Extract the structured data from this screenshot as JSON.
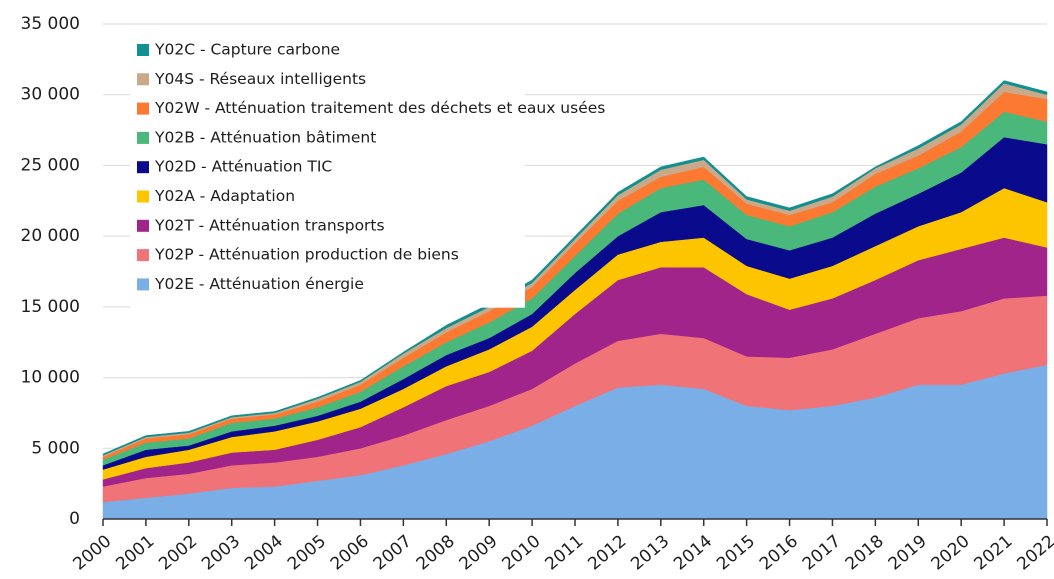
{
  "chart_data": {
    "type": "stacked_area",
    "x": [
      2000,
      2001,
      2002,
      2003,
      2004,
      2005,
      2006,
      2007,
      2008,
      2009,
      2010,
      2011,
      2012,
      2013,
      2014,
      2015,
      2016,
      2017,
      2018,
      2019,
      2020,
      2021,
      2022
    ],
    "xlim": [
      2000,
      2022
    ],
    "xticks": [
      2000,
      2001,
      2002,
      2003,
      2004,
      2005,
      2006,
      2007,
      2008,
      2009,
      2010,
      2011,
      2012,
      2013,
      2014,
      2015,
      2016,
      2017,
      2018,
      2019,
      2020,
      2021,
      2022
    ],
    "ylim": [
      0,
      35000
    ],
    "yticks": [
      0,
      {
        "value": 5000,
        "label": "5 000"
      },
      {
        "value": 10000,
        "label": "10 000"
      },
      {
        "value": 15000,
        "label": "15 000"
      },
      {
        "value": 20000,
        "label": "20 000"
      },
      {
        "value": 25000,
        "label": "25 000"
      },
      {
        "value": 30000,
        "label": "30 000"
      },
      {
        "value": 35000,
        "label": "35 000"
      }
    ],
    "grid": true,
    "legend": "upper left",
    "series": [
      {
        "name": "Y02E - Atténuation énergie",
        "color": "#7aaee6",
        "values": [
          1200,
          1500,
          1800,
          2200,
          2300,
          2700,
          3100,
          3800,
          4600,
          5500,
          6600,
          8000,
          9300,
          9500,
          9200,
          8000,
          7700,
          8000,
          8600,
          9500,
          9500,
          10300,
          10900
        ]
      },
      {
        "name": "Y02P - Atténuation production de biens",
        "color": "#f07378",
        "values": [
          1100,
          1400,
          1400,
          1600,
          1700,
          1700,
          1900,
          2100,
          2400,
          2500,
          2600,
          3000,
          3300,
          3600,
          3600,
          3500,
          3700,
          4000,
          4500,
          4700,
          5200,
          5300,
          4900
        ]
      },
      {
        "name": "Y02T - Atténuation transports",
        "color": "#a0248a",
        "values": [
          500,
          700,
          800,
          900,
          900,
          1200,
          1500,
          2000,
          2400,
          2400,
          2700,
          3500,
          4300,
          4700,
          5000,
          4400,
          3400,
          3600,
          3800,
          4100,
          4400,
          4300,
          3400
        ]
      },
      {
        "name": "Y02A - Adaptation",
        "color": "#fdc500",
        "values": [
          700,
          800,
          900,
          1100,
          1300,
          1300,
          1300,
          1300,
          1400,
          1600,
          1700,
          1700,
          1800,
          1800,
          2100,
          2000,
          2200,
          2300,
          2400,
          2400,
          2600,
          3500,
          3200
        ]
      },
      {
        "name": "Y02D - Atténuation TIC",
        "color": "#0a0a8c",
        "values": [
          300,
          500,
          300,
          400,
          400,
          400,
          500,
          700,
          800,
          800,
          900,
          1200,
          1300,
          2100,
          2300,
          1900,
          2000,
          2000,
          2300,
          2300,
          2800,
          3600,
          4100
        ]
      },
      {
        "name": "Y02B - Atténuation bâtiment",
        "color": "#4ab87a",
        "values": [
          400,
          500,
          500,
          600,
          500,
          600,
          700,
          900,
          900,
          1100,
          1100,
          1200,
          1600,
          1700,
          1800,
          1700,
          1700,
          1800,
          1900,
          1800,
          1800,
          1800,
          1600
        ]
      },
      {
        "name": "Y02W - Atténuation traitement des déchets et eaux usées",
        "color": "#fb7930",
        "values": [
          200,
          300,
          300,
          300,
          300,
          400,
          500,
          600,
          700,
          800,
          800,
          900,
          900,
          800,
          900,
          800,
          800,
          700,
          900,
          900,
          1100,
          1400,
          1600
        ]
      },
      {
        "name": "Y04S - Réseaux intelligents",
        "color": "#c9a98a",
        "values": [
          100,
          100,
          100,
          100,
          100,
          200,
          200,
          300,
          300,
          300,
          300,
          300,
          400,
          500,
          500,
          300,
          300,
          400,
          400,
          500,
          500,
          600,
          300
        ]
      },
      {
        "name": "Y02C - Capture carbone",
        "color": "#109090",
        "values": [
          100,
          100,
          100,
          100,
          100,
          100,
          100,
          100,
          200,
          200,
          200,
          200,
          200,
          200,
          200,
          200,
          200,
          200,
          100,
          200,
          200,
          200,
          200
        ]
      }
    ]
  }
}
